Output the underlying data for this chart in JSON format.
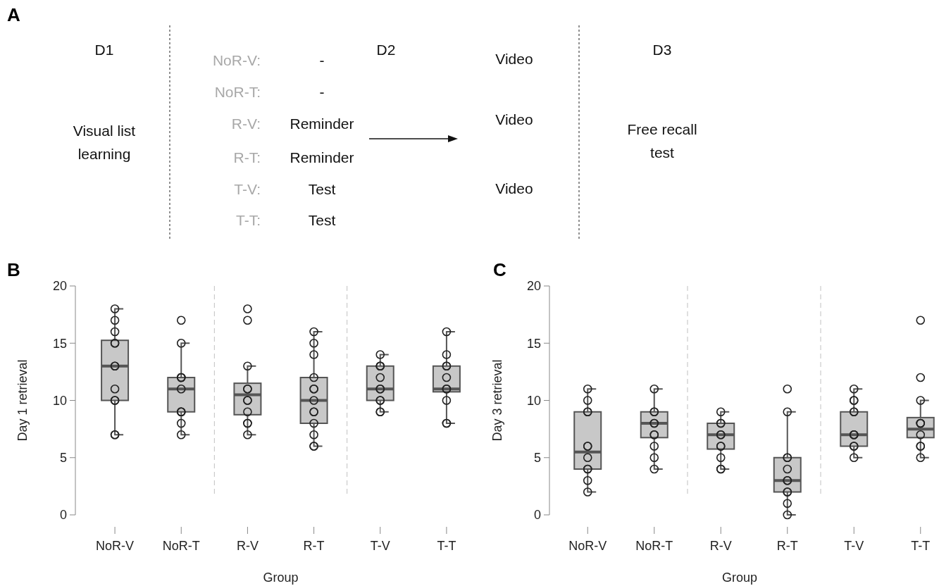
{
  "chart_data": [
    {
      "type": "other",
      "title": "A",
      "annotations": [
        "D1",
        "D2",
        "D3",
        "Visual list",
        "learning",
        "Free recall",
        "test",
        "NoR-V:",
        "-",
        "Video",
        "NoR-T:",
        "-",
        "R-V:",
        "Reminder",
        "Video",
        "R-T:",
        "Reminder",
        "T-V:",
        "Test",
        "Video",
        "T-T:",
        "Test"
      ]
    },
    {
      "type": "box",
      "title": "B",
      "xlabel": "Group",
      "ylabel": "Day 1 retrieval",
      "categories": [
        "NoR-V",
        "NoR-T",
        "R-V",
        "R-T",
        "T-V",
        "T-T"
      ],
      "ylim": [
        0,
        20
      ],
      "yticks": [
        0,
        5,
        10,
        15,
        20
      ],
      "marker": "circle",
      "series": [
        {
          "type": "box",
          "color": "#c8c8c8",
          "boxes": [
            {
              "low": 7,
              "q1": 10,
              "median": 13,
              "q3": 15.25,
              "high": 18
            },
            {
              "low": 7,
              "q1": 9,
              "median": 11,
              "q3": 12,
              "high": 15
            },
            {
              "low": 7,
              "q1": 8.75,
              "median": 10.5,
              "q3": 11.5,
              "high": 13
            },
            {
              "low": 6,
              "q1": 8,
              "median": 10,
              "q3": 12,
              "high": 16
            },
            {
              "low": 9,
              "q1": 10,
              "median": 11,
              "q3": 13,
              "high": 14
            },
            {
              "low": 8,
              "q1": 10.75,
              "median": 11,
              "q3": 13,
              "high": 16
            }
          ]
        },
        {
          "type": "scatter",
          "color": "#222222",
          "x": [
            "NoR-V",
            "NoR-V",
            "NoR-V",
            "NoR-V",
            "NoR-V",
            "NoR-V",
            "NoR-V",
            "NoR-V",
            "NoR-V",
            "NoR-V",
            "NoR-V",
            "NoR-V",
            "NoR-T",
            "NoR-T",
            "NoR-T",
            "NoR-T",
            "NoR-T",
            "NoR-T",
            "NoR-T",
            "NoR-T",
            "NoR-T",
            "NoR-T",
            "NoR-T",
            "R-V",
            "R-V",
            "R-V",
            "R-V",
            "R-V",
            "R-V",
            "R-V",
            "R-V",
            "R-V",
            "R-V",
            "R-V",
            "R-T",
            "R-T",
            "R-T",
            "R-T",
            "R-T",
            "R-T",
            "R-T",
            "R-T",
            "R-T",
            "R-T",
            "R-T",
            "R-T",
            "R-T",
            "T-V",
            "T-V",
            "T-V",
            "T-V",
            "T-V",
            "T-V",
            "T-V",
            "T-V",
            "T-V",
            "T-V",
            "T-V",
            "T-T",
            "T-T",
            "T-T",
            "T-T",
            "T-T",
            "T-T",
            "T-T",
            "T-T",
            "T-T",
            "T-T"
          ],
          "values": [
            18,
            17,
            16,
            15,
            15,
            13,
            13,
            11,
            10,
            10,
            7,
            7,
            17,
            15,
            12,
            12,
            12,
            11,
            9,
            9,
            9,
            8,
            7,
            18,
            17,
            13,
            11,
            11,
            10,
            10,
            9,
            8,
            8,
            7,
            16,
            15,
            14,
            12,
            11,
            11,
            10,
            9,
            9,
            8,
            7,
            6,
            6,
            14,
            13,
            13,
            13,
            12,
            11,
            11,
            10,
            10,
            9,
            9,
            16,
            14,
            13,
            13,
            12,
            11,
            11,
            10,
            8,
            8
          ]
        }
      ]
    },
    {
      "type": "box",
      "title": "C",
      "xlabel": "Group",
      "ylabel": "Day 3 retrieval",
      "categories": [
        "NoR-V",
        "NoR-T",
        "R-V",
        "R-T",
        "T-V",
        "T-T"
      ],
      "ylim": [
        0,
        20
      ],
      "yticks": [
        0,
        5,
        10,
        15,
        20
      ],
      "marker": "circle",
      "series": [
        {
          "type": "box",
          "color": "#c8c8c8",
          "boxes": [
            {
              "low": 2,
              "q1": 4,
              "median": 5.5,
              "q3": 9,
              "high": 11
            },
            {
              "low": 4,
              "q1": 6.75,
              "median": 8,
              "q3": 9,
              "high": 11
            },
            {
              "low": 4,
              "q1": 5.75,
              "median": 7,
              "q3": 8,
              "high": 9
            },
            {
              "low": 0,
              "q1": 2,
              "median": 3,
              "q3": 5,
              "high": 9
            },
            {
              "low": 5,
              "q1": 6,
              "median": 7,
              "q3": 9,
              "high": 11
            },
            {
              "low": 5,
              "q1": 6.75,
              "median": 7.5,
              "q3": 8.5,
              "high": 10
            }
          ]
        },
        {
          "type": "scatter",
          "color": "#222222",
          "x": [
            "NoR-V",
            "NoR-V",
            "NoR-V",
            "NoR-V",
            "NoR-V",
            "NoR-V",
            "NoR-V",
            "NoR-V",
            "NoR-V",
            "NoR-V",
            "NoR-V",
            "NoR-T",
            "NoR-T",
            "NoR-T",
            "NoR-T",
            "NoR-T",
            "NoR-T",
            "NoR-T",
            "NoR-T",
            "NoR-T",
            "NoR-T",
            "R-V",
            "R-V",
            "R-V",
            "R-V",
            "R-V",
            "R-V",
            "R-V",
            "R-V",
            "R-V",
            "R-V",
            "R-T",
            "R-T",
            "R-T",
            "R-T",
            "R-T",
            "R-T",
            "R-T",
            "R-T",
            "R-T",
            "R-T",
            "R-T",
            "T-V",
            "T-V",
            "T-V",
            "T-V",
            "T-V",
            "T-V",
            "T-V",
            "T-V",
            "T-V",
            "T-V",
            "T-V",
            "T-T",
            "T-T",
            "T-T",
            "T-T",
            "T-T",
            "T-T",
            "T-T",
            "T-T",
            "T-T",
            "T-T"
          ],
          "values": [
            11,
            10,
            9,
            9,
            6,
            6,
            5,
            4,
            4,
            3,
            2,
            11,
            9,
            9,
            8,
            8,
            7,
            7,
            6,
            5,
            4,
            9,
            8,
            8,
            7,
            7,
            6,
            6,
            5,
            4,
            4,
            11,
            9,
            5,
            5,
            4,
            3,
            3,
            2,
            2,
            1,
            0,
            11,
            10,
            10,
            9,
            9,
            7,
            7,
            7,
            6,
            6,
            5,
            17,
            12,
            10,
            8,
            8,
            8,
            7,
            6,
            6,
            5
          ]
        }
      ]
    }
  ]
}
